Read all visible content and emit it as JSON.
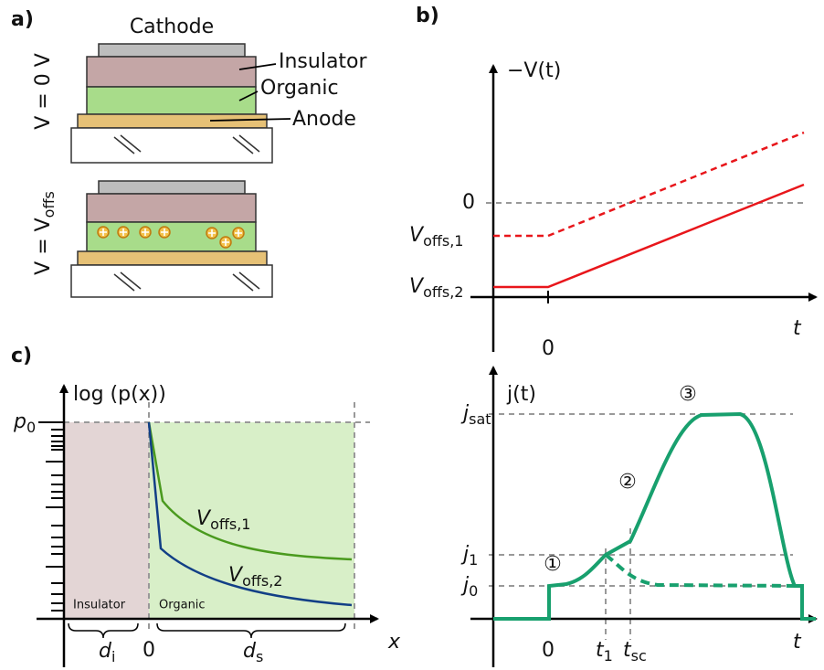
{
  "panel_a": {
    "label": "a)",
    "cathode": "Cathode",
    "insulator": "Insulator",
    "organic": "Organic",
    "anode": "Anode",
    "condition_top": "V = 0 V",
    "condition_bottom": {
      "main": "V = V",
      "sub": "offs"
    }
  },
  "panel_b": {
    "label": "b)",
    "y_axis": "−V(t)",
    "x_axis": "t",
    "x_origin": "0",
    "y_zero": "0",
    "levels": [
      {
        "main": "V",
        "sub": "offs,1"
      },
      {
        "main": "V",
        "sub": "offs,2"
      }
    ]
  },
  "panel_c": {
    "label": "c)",
    "y_axis": "log (p(x))",
    "x_axis": "x",
    "p0": {
      "main": "p",
      "sub": "0"
    },
    "curves": [
      {
        "main": "V",
        "sub": "offs,1"
      },
      {
        "main": "V",
        "sub": "offs,2"
      }
    ],
    "regions": [
      "Insulator",
      "Organic"
    ],
    "origin": "0",
    "thickness": [
      {
        "main": "d",
        "sub": "i"
      },
      {
        "main": "d",
        "sub": "s"
      }
    ]
  },
  "panel_d": {
    "y_axis": "j(t)",
    "x_axis": "t",
    "levels": [
      {
        "main": "j",
        "sub": "sat"
      },
      {
        "main": "j",
        "sub": "1"
      },
      {
        "main": "j",
        "sub": "0"
      }
    ],
    "stages": [
      "①",
      "②",
      "③"
    ],
    "times": [
      "0",
      {
        "main": "t",
        "sub": "1"
      },
      {
        "main": "t",
        "sub": "sc"
      }
    ]
  }
}
